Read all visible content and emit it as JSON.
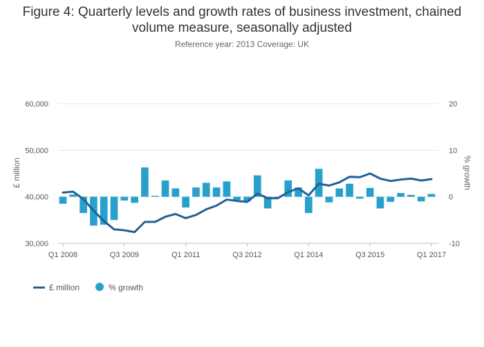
{
  "title_lines": [
    "Figure 4: Quarterly levels and growth rates of business investment, chained",
    "volume measure, seasonally adjusted"
  ],
  "subtitle": "Reference year: 2013 Coverage: UK",
  "colors": {
    "line": "#206095",
    "bar": "#27a0cc",
    "grid": "#e5e5e5",
    "axis": "#bfbfbf"
  },
  "chart_data": {
    "type": "bar+line",
    "title": "Figure 4: Quarterly levels and growth rates of business investment, chained volume measure, seasonally adjusted",
    "subtitle": "Reference year: 2013 Coverage: UK",
    "ylabel_left": "£ million",
    "ylabel_right": "% growth",
    "ylim_left": [
      30000,
      60000
    ],
    "ylim_right": [
      -10,
      20
    ],
    "yticks_left": [
      "60,000",
      "50,000",
      "40,000",
      "30,000"
    ],
    "yticks_right": [
      "20",
      "10",
      "0",
      "-10"
    ],
    "x_tick_labels": [
      "Q1 2008",
      "Q3 2009",
      "Q1 2011",
      "Q3 2012",
      "Q1 2014",
      "Q3 2015",
      "Q1 2017"
    ],
    "x_tick_every": 6,
    "categories": [
      "Q1 2008",
      "Q2 2008",
      "Q3 2008",
      "Q4 2008",
      "Q1 2009",
      "Q2 2009",
      "Q3 2009",
      "Q4 2009",
      "Q1 2010",
      "Q2 2010",
      "Q3 2010",
      "Q4 2010",
      "Q1 2011",
      "Q2 2011",
      "Q3 2011",
      "Q4 2011",
      "Q1 2012",
      "Q2 2012",
      "Q3 2012",
      "Q4 2012",
      "Q1 2013",
      "Q2 2013",
      "Q3 2013",
      "Q4 2013",
      "Q1 2014",
      "Q2 2014",
      "Q3 2014",
      "Q4 2014",
      "Q1 2015",
      "Q2 2015",
      "Q3 2015",
      "Q4 2015",
      "Q1 2016",
      "Q2 2016",
      "Q3 2016",
      "Q4 2016",
      "Q1 2017"
    ],
    "series": [
      {
        "name": "£ million",
        "type": "line",
        "axis": "left",
        "values": [
          40900,
          41100,
          39500,
          37000,
          34800,
          33000,
          32800,
          32400,
          34600,
          34600,
          35700,
          36300,
          35400,
          36100,
          37300,
          38100,
          39400,
          39100,
          38900,
          40700,
          39700,
          39700,
          41000,
          41800,
          40300,
          42800,
          42400,
          43100,
          44300,
          44200,
          45000,
          43900,
          43400,
          43700,
          43900,
          43500,
          43800
        ]
      },
      {
        "name": "% growth",
        "type": "bar",
        "axis": "right",
        "values": [
          -1.5,
          0.5,
          -3.5,
          -6.2,
          -6.0,
          -5.0,
          -0.8,
          -1.3,
          6.3,
          0.2,
          3.5,
          1.8,
          -2.3,
          2.0,
          3.0,
          2.0,
          3.3,
          -0.7,
          -1.0,
          4.6,
          -2.5,
          0.0,
          3.5,
          2.0,
          -3.5,
          6.0,
          -1.2,
          1.8,
          2.8,
          -0.4,
          1.9,
          -2.5,
          -1.1,
          0.8,
          0.4,
          -1.0,
          0.6
        ]
      }
    ],
    "legend": {
      "position": "bottom-left",
      "entries": [
        "£ million",
        "% growth"
      ]
    },
    "grid": true
  }
}
